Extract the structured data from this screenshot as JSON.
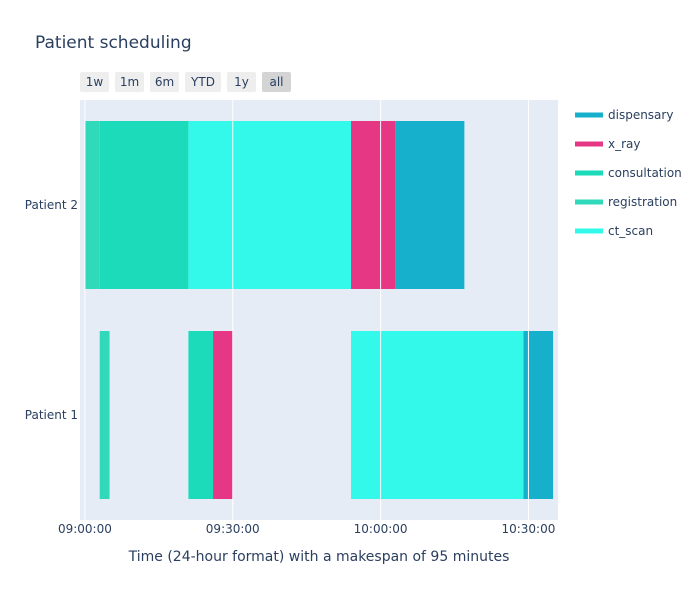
{
  "chart_data": {
    "type": "gantt",
    "title": "Patient scheduling",
    "xlabel": "Time (24-hour format) with a makespan of 95 minutes",
    "ylabel": "",
    "x_range": [
      "08:59:00",
      "10:36:00"
    ],
    "x_ticks": [
      "09:00:00",
      "09:30:00",
      "10:00:00",
      "10:30:00"
    ],
    "y_categories": [
      "Patient 1",
      "Patient 2"
    ],
    "range_selector": {
      "buttons": [
        "1w",
        "1m",
        "6m",
        "YTD",
        "1y",
        "all"
      ],
      "active": "all"
    },
    "legend": {
      "position": "right",
      "items": [
        {
          "name": "dispensary",
          "color": "#17b0cc"
        },
        {
          "name": "x_ray",
          "color": "#e53784"
        },
        {
          "name": "consultation",
          "color": "#1bdbbb"
        },
        {
          "name": "registration",
          "color": "#2fd9b9"
        },
        {
          "name": "ct_scan",
          "color": "#33f9ea"
        }
      ]
    },
    "tasks": [
      {
        "patient": "Patient 2",
        "task": "registration",
        "start": "09:00:00",
        "end": "09:03:00"
      },
      {
        "patient": "Patient 2",
        "task": "consultation",
        "start": "09:03:00",
        "end": "09:21:00"
      },
      {
        "patient": "Patient 2",
        "task": "ct_scan",
        "start": "09:21:00",
        "end": "09:54:00"
      },
      {
        "patient": "Patient 2",
        "task": "x_ray",
        "start": "09:54:00",
        "end": "10:03:00"
      },
      {
        "patient": "Patient 2",
        "task": "dispensary",
        "start": "10:03:00",
        "end": "10:17:00"
      },
      {
        "patient": "Patient 1",
        "task": "registration",
        "start": "09:03:00",
        "end": "09:05:00"
      },
      {
        "patient": "Patient 1",
        "task": "consultation",
        "start": "09:21:00",
        "end": "09:26:00"
      },
      {
        "patient": "Patient 1",
        "task": "x_ray",
        "start": "09:26:00",
        "end": "09:30:00"
      },
      {
        "patient": "Patient 1",
        "task": "ct_scan",
        "start": "09:54:00",
        "end": "10:29:00"
      },
      {
        "patient": "Patient 1",
        "task": "dispensary",
        "start": "10:29:00",
        "end": "10:35:00"
      }
    ]
  }
}
